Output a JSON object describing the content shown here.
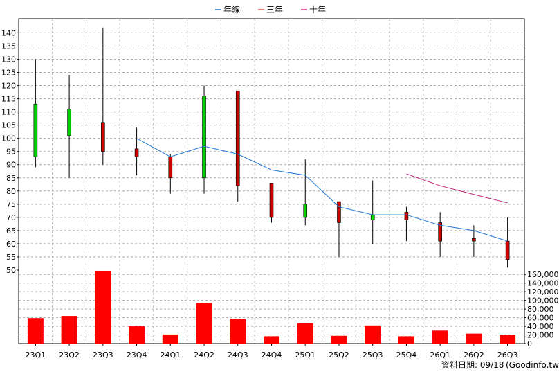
{
  "chart_data": {
    "type": "candlestick",
    "legend": {
      "placement": "top-center",
      "items": [
        {
          "name": "年線",
          "color": "#1f77d4"
        },
        {
          "name": "三年",
          "color": "#d9534f"
        },
        {
          "name": "十年",
          "color": "#c0207a"
        }
      ]
    },
    "categories": [
      "23Q1",
      "23Q2",
      "23Q3",
      "23Q4",
      "24Q1",
      "24Q2",
      "24Q3",
      "24Q4",
      "25Q1",
      "25Q2",
      "25Q3",
      "25Q4",
      "26Q1",
      "26Q2",
      "26Q3"
    ],
    "price_axis": {
      "ylim": [
        50,
        143
      ],
      "ticks": [
        50,
        55,
        60,
        65,
        70,
        75,
        80,
        85,
        90,
        95,
        100,
        105,
        110,
        115,
        120,
        125,
        130,
        135,
        140
      ],
      "grid": true
    },
    "volume_axis": {
      "ylim": [
        0,
        170000
      ],
      "ticks": [
        0,
        20000,
        40000,
        60000,
        80000,
        100000,
        120000,
        140000,
        160000
      ],
      "tick_labels": [
        "0",
        "20,000",
        "40,000",
        "60,000",
        "80,000",
        "100,000",
        "120,000",
        "140,000",
        "160,000"
      ]
    },
    "colors": {
      "up": "#00cc00",
      "down": "#cc0000",
      "volume": "#ff0000",
      "grid": "#aaaaaa"
    },
    "candles": [
      {
        "open": 93,
        "high": 130,
        "low": 89,
        "close": 113
      },
      {
        "open": 101,
        "high": 124,
        "low": 85,
        "close": 111
      },
      {
        "open": 106,
        "high": 142,
        "low": 90,
        "close": 95
      },
      {
        "open": 96,
        "high": 104,
        "low": 86,
        "close": 93
      },
      {
        "open": 93,
        "high": 94,
        "low": 79,
        "close": 85
      },
      {
        "open": 85,
        "high": 120,
        "low": 79,
        "close": 116
      },
      {
        "open": 118,
        "high": 118,
        "low": 76,
        "close": 82
      },
      {
        "open": 83,
        "high": 83,
        "low": 68,
        "close": 70
      },
      {
        "open": 70,
        "high": 92,
        "low": 67,
        "close": 75
      },
      {
        "open": 76,
        "high": 76,
        "low": 55,
        "close": 68
      },
      {
        "open": 69,
        "high": 84,
        "low": 60,
        "close": 71
      },
      {
        "open": 72,
        "high": 74,
        "low": 61,
        "close": 69
      },
      {
        "open": 68,
        "high": 72,
        "low": 55,
        "close": 61
      },
      {
        "open": 62,
        "high": 67,
        "low": 55,
        "close": 61
      },
      {
        "open": 61,
        "high": 70,
        "low": 51,
        "close": 54
      }
    ],
    "series": [
      {
        "name": "年線",
        "values": [
          null,
          null,
          null,
          100,
          93,
          97,
          94,
          88,
          86,
          74,
          71,
          71,
          67,
          65,
          61
        ]
      },
      {
        "name": "三年",
        "values": [
          null,
          null,
          null,
          null,
          null,
          null,
          null,
          null,
          null,
          null,
          null,
          null,
          null,
          null,
          null
        ]
      },
      {
        "name": "十年",
        "values": [
          null,
          null,
          null,
          null,
          null,
          null,
          null,
          null,
          null,
          null,
          null,
          86.5,
          82,
          78.7,
          75.5
        ]
      }
    ],
    "volume": [
      59000,
      64000,
      167000,
      40000,
      21000,
      94000,
      57000,
      17000,
      47000,
      18000,
      42000,
      17000,
      30000,
      23000,
      20000
    ]
  },
  "footer": {
    "date_label": "資料日期: 09/18",
    "source_label": "(Goodinfo.tw)"
  }
}
